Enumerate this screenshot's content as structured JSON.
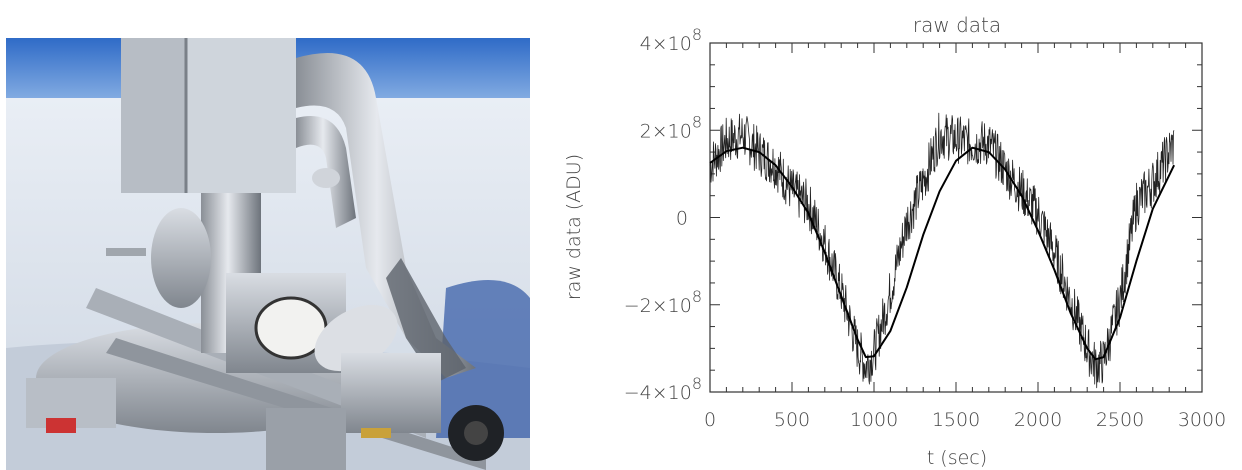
{
  "photo": {
    "description_icon": "instrument-photo"
  },
  "chart_data": {
    "type": "line",
    "title": "raw data",
    "xlabel": "t (sec)",
    "ylabel": "raw data (ADU)",
    "xlim": [
      0,
      3000
    ],
    "ylim": [
      -400000000,
      400000000
    ],
    "x_ticks": [
      0,
      500,
      1000,
      1500,
      2000,
      2500,
      3000
    ],
    "x_tick_labels": [
      "0",
      "500",
      "1000",
      "1500",
      "2000",
      "2500",
      "3000"
    ],
    "y_ticks": [
      -400000000,
      -200000000,
      0,
      200000000,
      400000000
    ],
    "y_tick_labels": [
      {
        "mant": "−4×10",
        "exp": "8"
      },
      {
        "mant": "−2×10",
        "exp": "8"
      },
      {
        "mant": "0",
        "exp": ""
      },
      {
        "mant": "2×10",
        "exp": "8"
      },
      {
        "mant": "4×10",
        "exp": "8"
      }
    ],
    "grid": false,
    "series": [
      {
        "kind": "noisy",
        "x": [
          0,
          100,
          200,
          300,
          400,
          500,
          600,
          700,
          800,
          900,
          950,
          1000,
          1100,
          1200,
          1300,
          1400,
          1500,
          1600,
          1700,
          1800,
          1900,
          2000,
          2100,
          2200,
          2300,
          2350,
          2400,
          2500,
          2600,
          2700,
          2800,
          2830
        ],
        "y": [
          120000000,
          175000000,
          190000000,
          150000000,
          120000000,
          60000000,
          30000000,
          -60000000,
          -170000000,
          -300000000,
          -340000000,
          -310000000,
          -170000000,
          -10000000,
          80000000,
          190000000,
          180000000,
          170000000,
          170000000,
          110000000,
          60000000,
          10000000,
          -80000000,
          -190000000,
          -300000000,
          -340000000,
          -330000000,
          -190000000,
          30000000,
          80000000,
          150000000,
          170000000
        ]
      },
      {
        "kind": "fit",
        "x": [
          0,
          100,
          200,
          300,
          400,
          500,
          600,
          700,
          800,
          900,
          950,
          1000,
          1100,
          1200,
          1300,
          1400,
          1500,
          1600,
          1700,
          1800,
          1900,
          2000,
          2100,
          2200,
          2300,
          2350,
          2400,
          2500,
          2600,
          2700,
          2830
        ],
        "y": [
          125000000,
          152000000,
          160000000,
          150000000,
          120000000,
          70000000,
          10000000,
          -80000000,
          -180000000,
          -280000000,
          -320000000,
          -318000000,
          -260000000,
          -160000000,
          -40000000,
          60000000,
          130000000,
          160000000,
          150000000,
          110000000,
          50000000,
          -30000000,
          -120000000,
          -220000000,
          -300000000,
          -325000000,
          -320000000,
          -230000000,
          -100000000,
          20000000,
          120000000
        ]
      }
    ]
  }
}
